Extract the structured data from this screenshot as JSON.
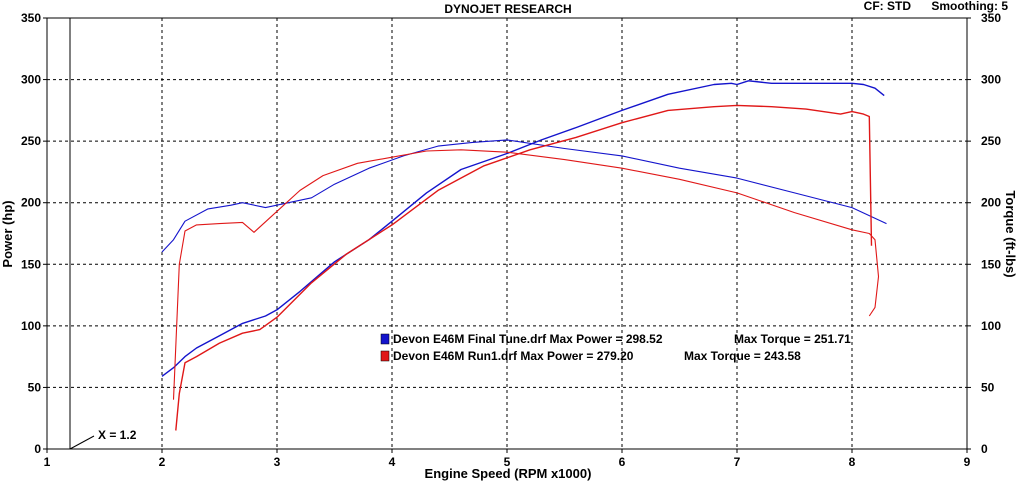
{
  "header": {
    "title": "DYNOJET RESEARCH",
    "cf_label": "CF: STD",
    "smoothing_label": "Smoothing: 5"
  },
  "chart_data": {
    "type": "line",
    "title": "DYNOJET RESEARCH",
    "xlabel": "Engine Speed (RPM x1000)",
    "ylabel": "Power (hp)",
    "ylabel_right": "Torque (ft-lbs)",
    "xlim": [
      1,
      9
    ],
    "ylim": [
      0,
      350
    ],
    "xticks": [
      "1",
      "2",
      "3",
      "4",
      "5",
      "6",
      "7",
      "8",
      "9"
    ],
    "yticks": [
      "0",
      "50",
      "100",
      "150",
      "200",
      "250",
      "300",
      "350"
    ],
    "grid": true,
    "marker": {
      "x": 1.2,
      "label": "X = 1.2"
    },
    "legend": [
      {
        "text": "Devon E46M Final Tune.drf Max Power = 298.52",
        "torque_text": "Max Torque = 251.71",
        "color": "#1414cc"
      },
      {
        "text": "Devon E46M Run1.drf Max Power = 279.20",
        "torque_text": "Max Torque = 243.58",
        "color": "#e01818"
      }
    ],
    "series": [
      {
        "name": "Devon E46M Final Tune.drf",
        "kind": "power",
        "color": "#1414cc",
        "x": [
          2.0,
          2.1,
          2.2,
          2.3,
          2.5,
          2.7,
          2.9,
          3.0,
          3.2,
          3.5,
          3.8,
          4.0,
          4.3,
          4.6,
          5.0,
          5.3,
          5.6,
          6.0,
          6.4,
          6.8,
          6.95,
          7.0,
          7.1,
          7.3,
          7.6,
          8.0,
          8.1,
          8.2,
          8.28
        ],
        "y": [
          59,
          66,
          75,
          82,
          92,
          102,
          108,
          113,
          128,
          152,
          170,
          185,
          208,
          227,
          240,
          251,
          261,
          275,
          288,
          296,
          297,
          296,
          299,
          297,
          297,
          297,
          296,
          293,
          287
        ]
      },
      {
        "name": "Devon E46M Final Tune.drf",
        "kind": "torque",
        "color": "#1414cc",
        "x": [
          2.0,
          2.1,
          2.2,
          2.4,
          2.6,
          2.7,
          2.9,
          3.1,
          3.3,
          3.5,
          3.8,
          4.1,
          4.4,
          4.7,
          5.0,
          5.5,
          6.0,
          6.5,
          7.0,
          7.5,
          8.0,
          8.3
        ],
        "y": [
          160,
          170,
          185,
          195,
          198,
          200,
          196,
          200,
          204,
          215,
          228,
          238,
          246,
          249,
          251,
          244,
          238,
          228,
          220,
          208,
          196,
          183
        ]
      },
      {
        "name": "Devon E46M Run1.drf",
        "kind": "power",
        "color": "#e01818",
        "x": [
          2.12,
          2.15,
          2.2,
          2.3,
          2.5,
          2.7,
          2.85,
          3.0,
          3.3,
          3.6,
          4.0,
          4.4,
          4.8,
          5.2,
          5.6,
          6.0,
          6.4,
          6.8,
          7.0,
          7.3,
          7.6,
          7.9,
          8.0,
          8.1,
          8.15,
          8.17
        ],
        "y": [
          15,
          45,
          70,
          75,
          86,
          94,
          97,
          107,
          135,
          158,
          182,
          210,
          230,
          243,
          253,
          265,
          275,
          278,
          279,
          278,
          276,
          272,
          274,
          272,
          270,
          165
        ]
      },
      {
        "name": "Devon E46M Run1.drf",
        "kind": "torque",
        "color": "#e01818",
        "x": [
          2.1,
          2.15,
          2.2,
          2.3,
          2.5,
          2.7,
          2.8,
          3.0,
          3.2,
          3.4,
          3.7,
          4.0,
          4.3,
          4.6,
          5.0,
          5.5,
          6.0,
          6.5,
          7.0,
          7.5,
          8.0,
          8.15,
          8.2,
          8.23,
          8.2,
          8.15
        ],
        "y": [
          40,
          150,
          177,
          182,
          183,
          184,
          176,
          193,
          210,
          222,
          232,
          237,
          242,
          243,
          241,
          235,
          228,
          219,
          208,
          192,
          178,
          175,
          170,
          140,
          115,
          108
        ]
      }
    ]
  }
}
